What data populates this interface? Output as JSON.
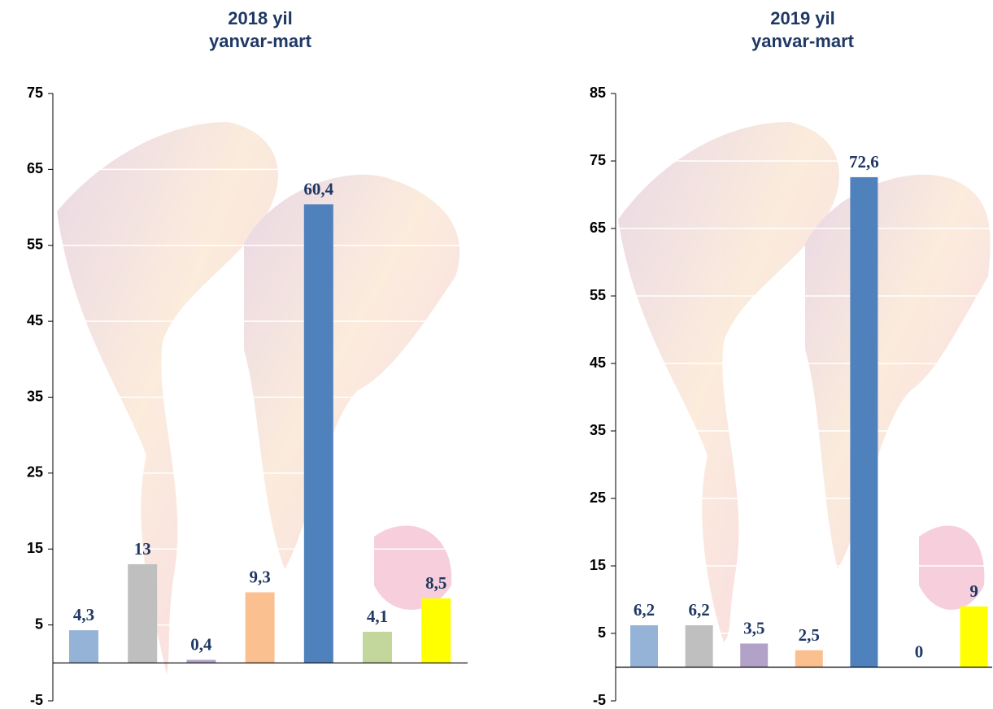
{
  "chart_data": [
    {
      "type": "bar",
      "title": [
        "2018 yil",
        "yanvar-mart"
      ],
      "values": [
        4.3,
        13,
        0.4,
        9.3,
        60.4,
        4.1,
        8.5
      ],
      "value_labels": [
        "4,3",
        "13",
        "0,4",
        "9,3",
        "60,4",
        "4,1",
        "8,5"
      ],
      "colors": [
        "#95b3d7",
        "#bfbfbf",
        "#b3a2c7",
        "#fac090",
        "#4f81bd",
        "#c3d69b",
        "#ffff00"
      ],
      "ylim": [
        -5,
        75
      ],
      "yticks": [
        -5,
        5,
        15,
        25,
        35,
        45,
        55,
        65,
        75
      ],
      "grid": true
    },
    {
      "type": "bar",
      "title": [
        "2019 yil",
        "yanvar-mart"
      ],
      "values": [
        6.2,
        6.2,
        3.5,
        2.5,
        72.6,
        0,
        9
      ],
      "value_labels": [
        "6,2",
        "6,2",
        "3,5",
        "2,5",
        "72,6",
        "0",
        "9"
      ],
      "colors": [
        "#95b3d7",
        "#bfbfbf",
        "#b3a2c7",
        "#fac090",
        "#4f81bd",
        "#c3d69b",
        "#ffff00"
      ],
      "ylim": [
        -5,
        85
      ],
      "yticks": [
        -5,
        5,
        15,
        25,
        35,
        45,
        55,
        65,
        75,
        85
      ],
      "grid": true
    }
  ]
}
